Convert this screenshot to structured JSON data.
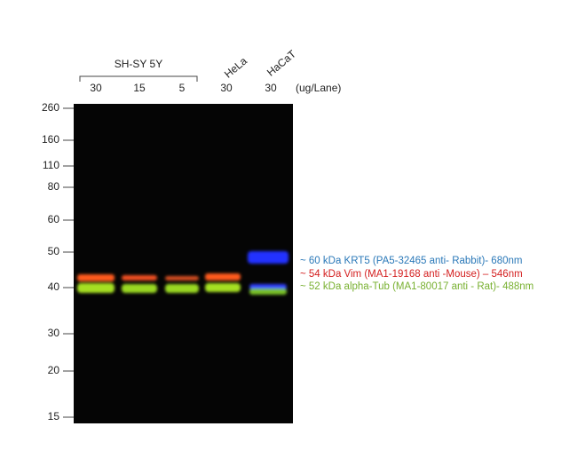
{
  "header": {
    "group_label": "SH-SY 5Y",
    "cell_lines": [
      "HeLa",
      "HaCaT"
    ],
    "lane_loads": [
      "30",
      "15",
      "5",
      "30",
      "30"
    ],
    "unit": "(ug/Lane)"
  },
  "markers": [
    "260",
    "160",
    "110",
    "80",
    "60",
    "50",
    "40",
    "30",
    "20",
    "15"
  ],
  "legend": [
    "~ 60 kDa KRT5 (PA5-32465 anti- Rabbit)- 680nm",
    "~ 54 kDa Vim (MA1-19168 anti -Mouse) – 546nm",
    "~ 52 kDa alpha-Tub (MA1-80017 anti - Rat)- 488nm"
  ]
}
